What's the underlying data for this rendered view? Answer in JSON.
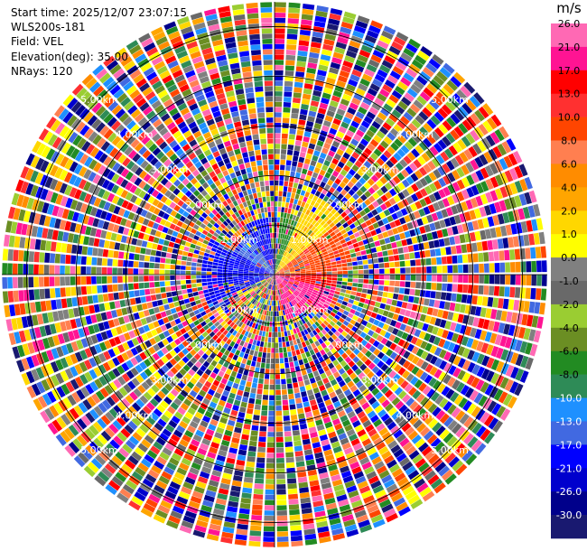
{
  "info": {
    "start_time": "Start time: 2025/12/07 23:07:15",
    "instrument": "WLS200s-181",
    "field": "Field: VEL",
    "elevation": "Elevation(deg): 35.00",
    "nrays": "NRays: 120"
  },
  "chart_data": {
    "type": "heatmap",
    "projection": "polar-ppi",
    "field": "VEL",
    "elevation_deg": 35.0,
    "n_rays": 120,
    "max_range_km": 5.5,
    "range_rings_km": [
      1.0,
      2.0,
      3.0,
      4.0,
      5.0
    ],
    "ring_labels": [
      "1.00km",
      "2.00km",
      "3.00km",
      "4.00km",
      "5.00km"
    ],
    "grid": true,
    "colorbar": {
      "unit": "m/s",
      "position": "right",
      "bins": [
        {
          "label": "26.0",
          "color": "#ff69b4"
        },
        {
          "label": "21.0",
          "color": "#ff1493"
        },
        {
          "label": "17.0",
          "color": "#ff0000"
        },
        {
          "label": "13.0",
          "color": "#ff3030"
        },
        {
          "label": "10.0",
          "color": "#ff4500"
        },
        {
          "label": "8.0",
          "color": "#ff7f50"
        },
        {
          "label": "6.0",
          "color": "#ff8c00"
        },
        {
          "label": "4.0",
          "color": "#ffa500"
        },
        {
          "label": "2.0",
          "color": "#ffd700"
        },
        {
          "label": "1.0",
          "color": "#ffff00"
        },
        {
          "label": "0.0",
          "color": "#808080"
        },
        {
          "label": "-1.0",
          "color": "#696969"
        },
        {
          "label": "-2.0",
          "color": "#9acd32"
        },
        {
          "label": "-4.0",
          "color": "#6b8e23"
        },
        {
          "label": "-6.0",
          "color": "#228b22"
        },
        {
          "label": "-8.0",
          "color": "#2e8b57"
        },
        {
          "label": "-10.0",
          "color": "#1e90ff"
        },
        {
          "label": "-13.0",
          "color": "#4169e1"
        },
        {
          "label": "-17.0",
          "color": "#0000ff"
        },
        {
          "label": "-21.0",
          "color": "#0000cd"
        },
        {
          "label": "-26.0",
          "color": "#00008b"
        },
        {
          "label": "-30.0",
          "color": "#191970"
        }
      ]
    },
    "coherent_sectors": [
      {
        "az_from": 5,
        "az_to": 25,
        "r_from_km": 0.0,
        "r_to_km": 1.3,
        "bin": 14
      },
      {
        "az_from": 25,
        "az_to": 50,
        "r_from_km": 0.0,
        "r_to_km": 1.8,
        "bin": 8
      },
      {
        "az_from": 50,
        "az_to": 90,
        "r_from_km": 0.0,
        "r_to_km": 1.6,
        "bin": 4
      },
      {
        "az_from": 90,
        "az_to": 105,
        "r_from_km": 0.0,
        "r_to_km": 1.3,
        "bin": 2
      },
      {
        "az_from": 105,
        "az_to": 130,
        "r_from_km": 0.0,
        "r_to_km": 1.3,
        "bin": 1
      },
      {
        "az_from": 130,
        "az_to": 165,
        "r_from_km": 0.0,
        "r_to_km": 1.0,
        "bin": 1
      },
      {
        "az_from": 245,
        "az_to": 300,
        "r_from_km": 0.0,
        "r_to_km": 1.5,
        "bin": 18
      },
      {
        "az_from": 300,
        "az_to": 330,
        "r_from_km": 0.0,
        "r_to_km": 1.0,
        "bin": 17
      },
      {
        "az_from": 330,
        "az_to": 355,
        "r_from_km": 0.0,
        "r_to_km": 1.2,
        "bin": 18
      }
    ]
  }
}
